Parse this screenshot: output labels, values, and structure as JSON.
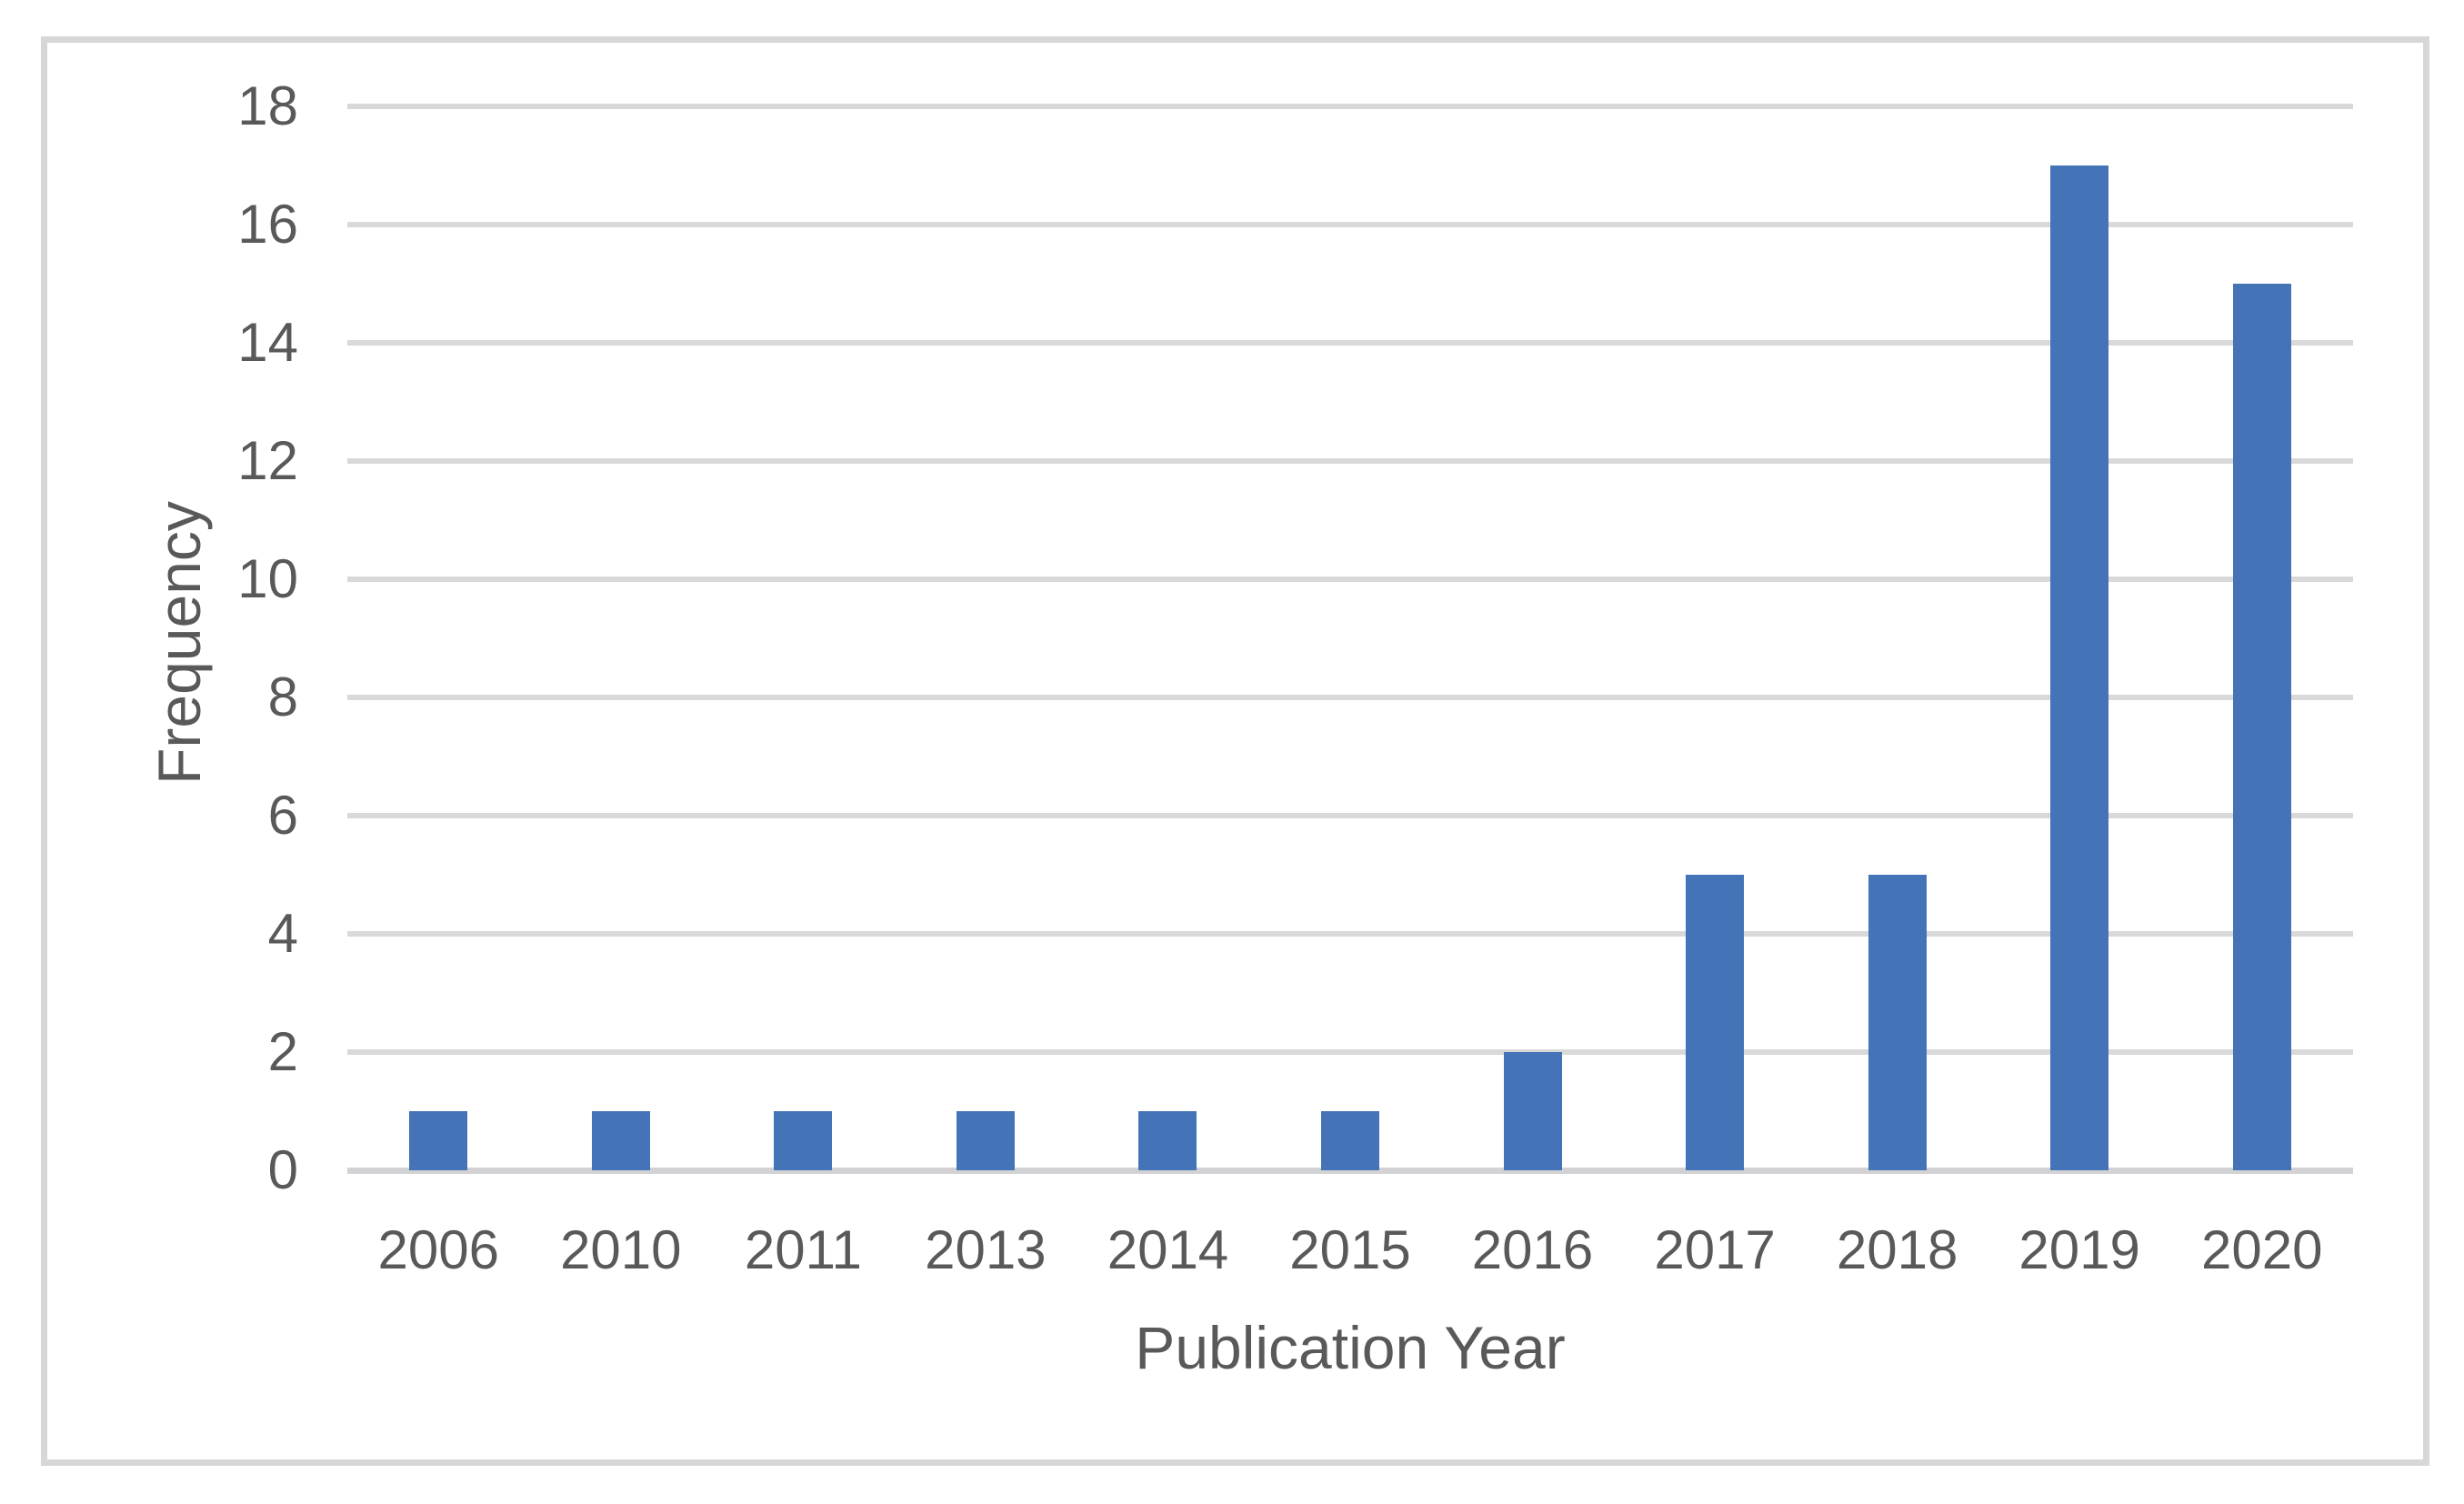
{
  "chart_data": {
    "type": "bar",
    "title": "",
    "xlabel": "Publication Year",
    "ylabel": "Frequency",
    "categories": [
      "2006",
      "2010",
      "2011",
      "2013",
      "2014",
      "2015",
      "2016",
      "2017",
      "2018",
      "2019",
      "2020"
    ],
    "values": [
      1,
      1,
      1,
      1,
      1,
      1,
      2,
      5,
      5,
      17,
      15
    ],
    "ylim": [
      0,
      18
    ],
    "ytick_step": 2,
    "ytick_labels": [
      "0",
      "2",
      "4",
      "6",
      "8",
      "10",
      "12",
      "14",
      "16",
      "18"
    ],
    "grid": "horizontal-only",
    "legend_position": "none",
    "colors": {
      "bar": "#4573b7",
      "gridline": "#d9d9d9",
      "axis_line": "#d2d2d4",
      "text": "#595959",
      "chart_border": "#d7d7d9",
      "background": "#ffffff"
    }
  }
}
